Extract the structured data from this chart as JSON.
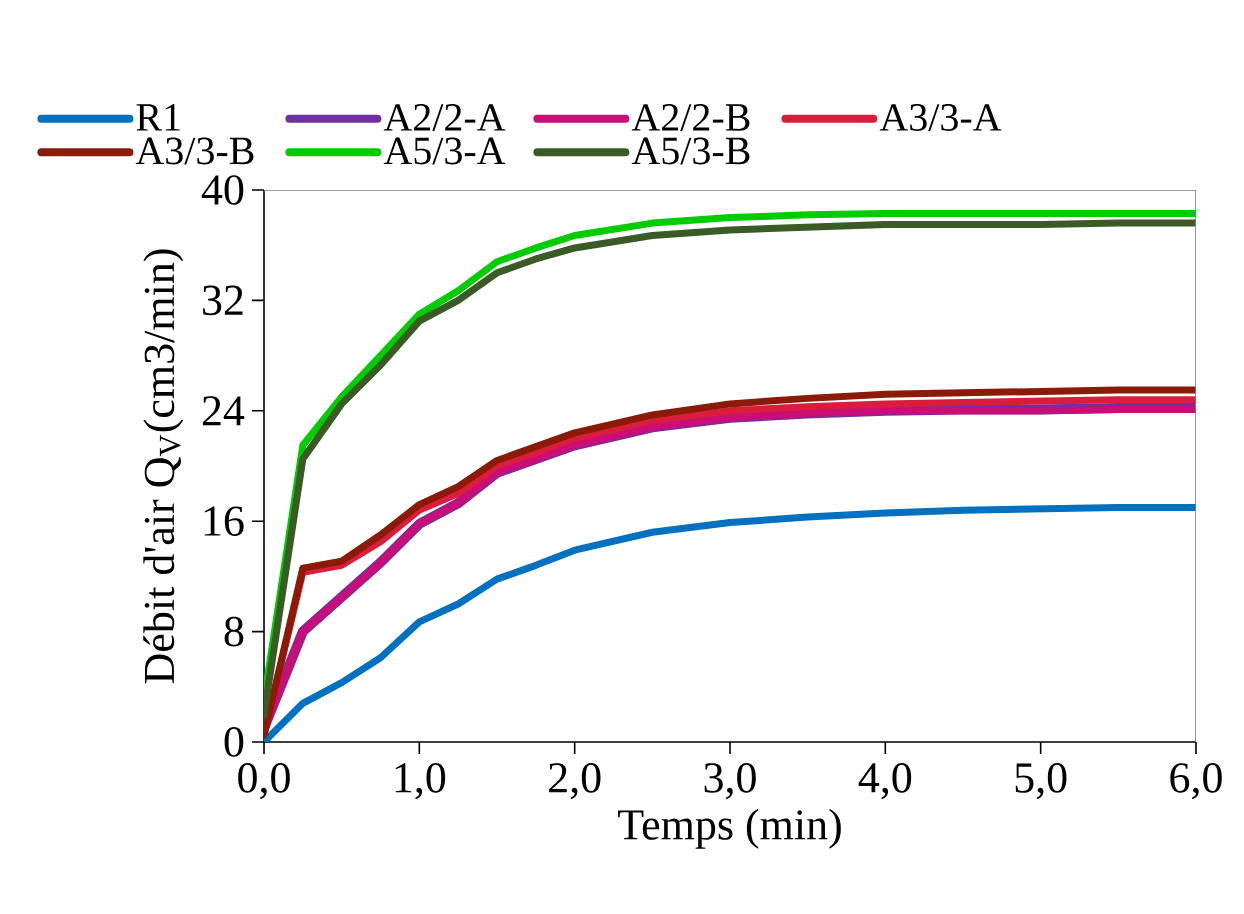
{
  "chart_data": {
    "type": "line",
    "xlabel": "Temps (min)",
    "ylabel": "Débit d'air Q$_{V}$(cm3/min)",
    "x": [
      0,
      0.25,
      0.5,
      0.75,
      1.0,
      1.25,
      1.5,
      1.75,
      2.0,
      2.5,
      3.0,
      3.5,
      4.0,
      4.5,
      5.0,
      5.5,
      6.0
    ],
    "series": [
      {
        "name": "R1",
        "color": "#0070c0",
        "values": [
          0,
          2.8,
          4.3,
          6.1,
          8.7,
          10.0,
          11.8,
          12.8,
          13.9,
          15.2,
          15.9,
          16.3,
          16.6,
          16.8,
          16.9,
          17.0,
          17.0
        ]
      },
      {
        "name": "A2/2-A",
        "color": "#7030a0",
        "values": [
          1,
          8.0,
          10.5,
          13.0,
          15.8,
          17.3,
          19.5,
          20.5,
          21.5,
          22.8,
          23.5,
          23.8,
          24.0,
          24.1,
          24.1,
          24.2,
          24.2
        ]
      },
      {
        "name": "A2/2-B",
        "color": "#cc0c77",
        "values": [
          0.8,
          8.0,
          10.5,
          13.0,
          15.8,
          17.3,
          19.5,
          20.5,
          21.5,
          22.8,
          23.5,
          23.8,
          24.0,
          24.0,
          24.0,
          24.1,
          24.1
        ]
      },
      {
        "name": "A3/3-A",
        "color": "#dc1c3c",
        "values": [
          0.5,
          12.3,
          12.8,
          14.5,
          16.8,
          18.0,
          20.0,
          21.0,
          22.0,
          23.3,
          24.0,
          24.3,
          24.5,
          24.6,
          24.7,
          24.8,
          24.8
        ]
      },
      {
        "name": "A3/3-B",
        "color": "#8b1a08",
        "values": [
          0.5,
          12.6,
          13.1,
          15.0,
          17.2,
          18.5,
          20.4,
          21.4,
          22.4,
          23.7,
          24.5,
          24.9,
          25.2,
          25.3,
          25.4,
          25.5,
          25.5
        ]
      },
      {
        "name": "A5/3-A",
        "color": "#00cc00",
        "values": [
          3,
          21.5,
          25.0,
          28.0,
          31.0,
          32.7,
          34.8,
          35.8,
          36.7,
          37.6,
          38.0,
          38.2,
          38.3,
          38.3,
          38.3,
          38.3,
          38.3
        ]
      },
      {
        "name": "A5/3-B",
        "color": "#3a5a26",
        "values": [
          2,
          20.5,
          24.5,
          27.3,
          30.5,
          32.0,
          34.0,
          35.0,
          35.8,
          36.7,
          37.1,
          37.3,
          37.5,
          37.5,
          37.5,
          37.6,
          37.6
        ]
      }
    ],
    "xlim": [
      0,
      6
    ],
    "ylim": [
      0,
      40
    ],
    "xticks": [
      {
        "value": 0,
        "label": "0,0"
      },
      {
        "value": 1,
        "label": "1,0"
      },
      {
        "value": 2,
        "label": "2,0"
      },
      {
        "value": 3,
        "label": "3,0"
      },
      {
        "value": 4,
        "label": "4,0"
      },
      {
        "value": 5,
        "label": "5,0"
      },
      {
        "value": 6,
        "label": "6,0"
      }
    ],
    "yticks": [
      0,
      8,
      16,
      24,
      32,
      40
    ],
    "legend": "top",
    "grid": false,
    "marker": "none",
    "line_style": "solid"
  }
}
